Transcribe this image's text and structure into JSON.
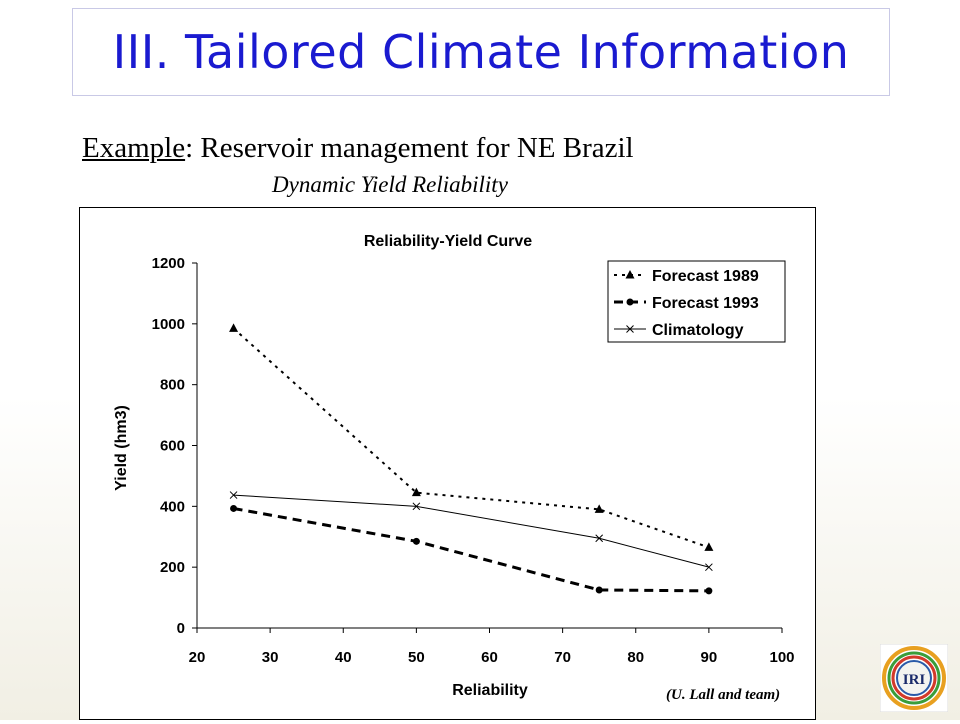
{
  "slide": {
    "title": "III. Tailored Climate Information",
    "example_label": "Example",
    "example_text": ": Reservoir management for NE Brazil",
    "subtitle": "Dynamic Yield Reliability",
    "credit": "(U. Lall and team)",
    "logo_text": "IRI"
  },
  "chart_data": {
    "type": "line",
    "title": "Reliability-Yield Curve",
    "xlabel": "Reliability",
    "ylabel": "Yield (hm3)",
    "xlim": [
      20,
      100
    ],
    "ylim": [
      0,
      1200
    ],
    "xticks": [
      20,
      30,
      40,
      50,
      60,
      70,
      80,
      90,
      100
    ],
    "yticks": [
      0,
      200,
      400,
      600,
      800,
      1000,
      1200
    ],
    "grid": false,
    "legend_position": "top-right",
    "series": [
      {
        "name": "Forecast 1989",
        "x": [
          25,
          50,
          75,
          90
        ],
        "y": [
          985,
          445,
          390,
          265
        ],
        "marker": "triangle",
        "line": "dotted",
        "color": "#000000"
      },
      {
        "name": "Forecast 1993",
        "x": [
          25,
          50,
          75,
          90
        ],
        "y": [
          393,
          285,
          125,
          122
        ],
        "marker": "circle",
        "line": "dashed",
        "color": "#000000"
      },
      {
        "name": "Climatology",
        "x": [
          25,
          50,
          75,
          90
        ],
        "y": [
          437,
          400,
          295,
          200
        ],
        "marker": "x",
        "line": "solid",
        "color": "#000000"
      }
    ]
  }
}
